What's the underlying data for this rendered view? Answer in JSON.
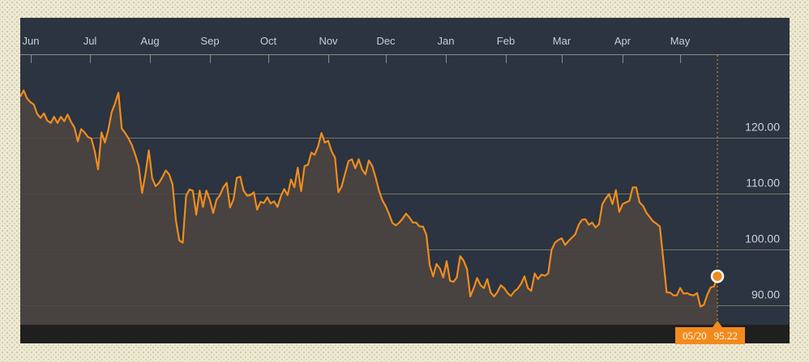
{
  "chart_data": {
    "type": "area",
    "x_labels": [
      "Jun",
      "Jul",
      "Aug",
      "Sep",
      "Oct",
      "Nov",
      "Dec",
      "Jan",
      "Feb",
      "Mar",
      "Apr",
      "May"
    ],
    "y_ticks": [
      "120.00",
      "110.00",
      "100.00",
      "90.00"
    ],
    "ylim": [
      86.4,
      134
    ],
    "grid": "horizontal",
    "series": [
      {
        "values": [
          127.3,
          128.4,
          127.0,
          126.3,
          125.9,
          124.2,
          123.5,
          124.3,
          123.0,
          122.6,
          123.7,
          122.6,
          123.7,
          122.9,
          124.1,
          122.8,
          121.8,
          119.3,
          121.5,
          120.9,
          120.1,
          119.8,
          117.6,
          114.3,
          120.9,
          119.1,
          121.3,
          124.5,
          126.1,
          128.0,
          121.6,
          120.8,
          119.8,
          118.6,
          116.9,
          114.9,
          110.1,
          113.5,
          117.7,
          112.7,
          111.3,
          111.9,
          112.9,
          114.1,
          113.4,
          111.6,
          105.2,
          101.6,
          101.2,
          109.6,
          110.7,
          110.5,
          106.2,
          110.5,
          107.6,
          110.5,
          108.9,
          106.5,
          108.9,
          109.7,
          111.1,
          111.9,
          107.5,
          108.9,
          112.8,
          113.0,
          110.5,
          109.6,
          109.7,
          110.2,
          107.1,
          108.5,
          108.3,
          109.3,
          108.2,
          108.6,
          107.6,
          109.5,
          110.8,
          109.7,
          112.5,
          111.1,
          114.6,
          110.4,
          114.9,
          115.1,
          117.3,
          116.9,
          118.4,
          120.8,
          119.1,
          119.4,
          117.5,
          116.4,
          110.2,
          111.3,
          113.6,
          115.8,
          116.1,
          114.5,
          116.1,
          114.3,
          113.4,
          115.9,
          114.9,
          112.9,
          110.5,
          108.8,
          107.7,
          106.3,
          104.7,
          104.3,
          104.8,
          105.5,
          106.4,
          105.7,
          104.8,
          104.8,
          104.1,
          104.1,
          102.6,
          97.2,
          95.2,
          97.4,
          96.6,
          95.0,
          97.9,
          94.4,
          94.2,
          95.0,
          98.8,
          98.0,
          96.5,
          91.6,
          93.1,
          94.9,
          93.6,
          93.1,
          94.7,
          92.3,
          91.6,
          92.4,
          93.6,
          93.1,
          92.2,
          91.7,
          92.5,
          93.0,
          93.9,
          95.2,
          93.1,
          92.6,
          95.7,
          94.7,
          95.5,
          95.3,
          95.7,
          99.9,
          101.2,
          101.7,
          102.0,
          100.8,
          101.5,
          102.1,
          102.7,
          104.4,
          105.3,
          105.4,
          104.4,
          104.8,
          103.9,
          104.5,
          108.1,
          109.1,
          109.9,
          108.1,
          110.6,
          106.7,
          108.1,
          108.4,
          108.7,
          111.1,
          111.1,
          108.4,
          107.8,
          106.6,
          105.8,
          105.0,
          104.6,
          104.1,
          98.3,
          92.3,
          92.3,
          91.8,
          91.8,
          93.1,
          92.1,
          92.2,
          91.9,
          91.8,
          92.2,
          89.8,
          90.1,
          91.9,
          93.2,
          93.4,
          95.2
        ]
      }
    ],
    "end_marker": {
      "date": "05/20",
      "value": "95.22"
    },
    "colors": {
      "line": "#f08c1e",
      "fill": "#4b4340",
      "background": "#2b3440",
      "grid": "#7a7468"
    }
  }
}
